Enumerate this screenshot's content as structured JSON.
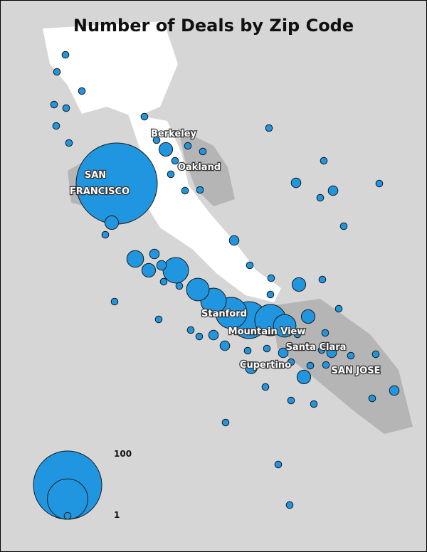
{
  "title": "Number of Deals by Zip Code",
  "places": [
    "Berkeley",
    "Oakland",
    "SAN",
    "FRANCISCO",
    "Stanford",
    "Mountain View",
    "Santa Clara",
    "Cupertino",
    "SAN JOSE"
  ],
  "deals": [
    1,
    1,
    1,
    1,
    1,
    1,
    1,
    141,
    4,
    1,
    1,
    1,
    4,
    1,
    1,
    1,
    1,
    1,
    1,
    1,
    1,
    2,
    2,
    1,
    1,
    1,
    2,
    6,
    2,
    4,
    2,
    14,
    1,
    1,
    11,
    14,
    21,
    29,
    21,
    11,
    4,
    4,
    1,
    1,
    1,
    1,
    1,
    1,
    1,
    1,
    1,
    2,
    2,
    1,
    3,
    1,
    2,
    1,
    1,
    1,
    2,
    1,
    1,
    1,
    4,
    1,
    1,
    2,
    1,
    1,
    1,
    1,
    1,
    1,
    1
  ],
  "legend": {
    "circles": [
      100,
      35,
      1
    ]
  }
}
